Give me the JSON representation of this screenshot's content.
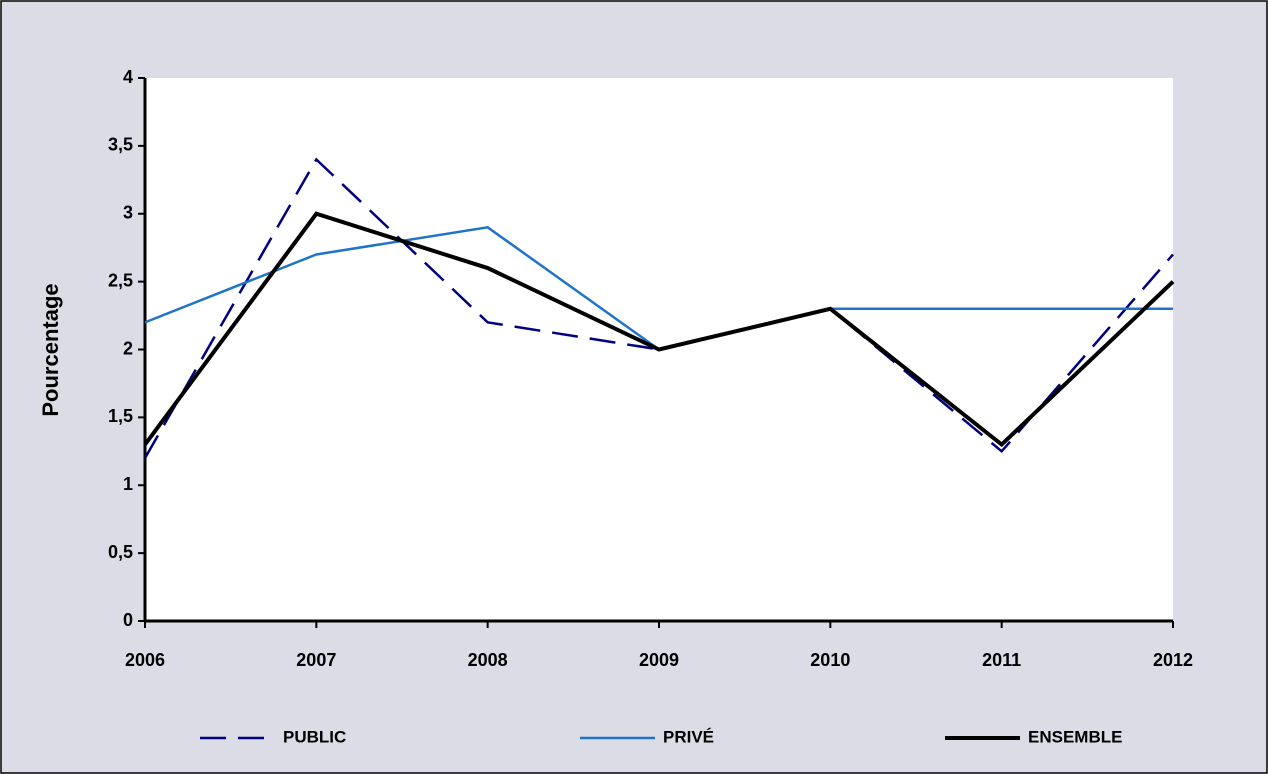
{
  "chart_data": {
    "type": "line",
    "y_label": "Pourcentage",
    "x": [
      2006,
      2007,
      2008,
      2009,
      2010,
      2011,
      2012
    ],
    "xlim": [
      2006,
      2012
    ],
    "xticks": [
      2006,
      2007,
      2008,
      2009,
      2010,
      2011,
      2012
    ],
    "ylim": [
      0,
      4
    ],
    "yticks": [
      0,
      {
        "value": 0.5,
        "label": "0,5"
      },
      1,
      {
        "value": 1.5,
        "label": "1,5"
      },
      2,
      {
        "value": 2.5,
        "label": "2,5"
      },
      3,
      {
        "value": 3.5,
        "label": "3,5"
      },
      4
    ],
    "grid": false,
    "legend": "bottom",
    "series": [
      {
        "name": "PUBLIC",
        "color": "#000080",
        "dash": true,
        "width": 2.5,
        "values": [
          1.2,
          3.4,
          2.2,
          2.0,
          2.3,
          1.25,
          2.7
        ]
      },
      {
        "name": "PRIVÉ",
        "color": "#1f74c9",
        "dash": false,
        "width": 2.5,
        "values": [
          2.2,
          2.7,
          2.9,
          2.0,
          2.3,
          2.3,
          2.3
        ]
      },
      {
        "name": "ENSEMBLE",
        "color": "#000000",
        "dash": false,
        "width": 4,
        "values": [
          1.3,
          3.0,
          2.6,
          2.0,
          2.3,
          1.3,
          2.5
        ]
      }
    ]
  }
}
